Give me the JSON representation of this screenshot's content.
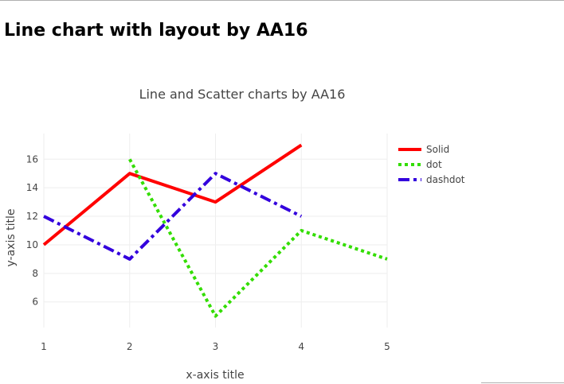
{
  "page": {
    "heading": "Line chart with layout by AA16"
  },
  "chart_data": {
    "type": "line",
    "title": "Line and Scatter charts by AA16",
    "xlabel": "x-axis title",
    "ylabel": "y-axis title",
    "xlim": [
      1,
      5
    ],
    "ylim": [
      4.2,
      17.8
    ],
    "x_ticks": [
      1,
      2,
      3,
      4,
      5
    ],
    "y_ticks": [
      6,
      8,
      10,
      12,
      14,
      16
    ],
    "grid": true,
    "legend_position": "top-right",
    "series": [
      {
        "name": "Solid",
        "x": [
          1,
          2,
          3,
          4
        ],
        "y": [
          10,
          15,
          13,
          17
        ],
        "color": "#ff0000",
        "dash": "solid"
      },
      {
        "name": "dot",
        "x": [
          2,
          3,
          4,
          5
        ],
        "y": [
          16,
          5,
          11,
          9
        ],
        "color": "#33dd00",
        "dash": "dot"
      },
      {
        "name": "dashdot",
        "x": [
          1,
          2,
          3,
          4
        ],
        "y": [
          12,
          9,
          15,
          12
        ],
        "color": "#3300dd",
        "dash": "dashdot"
      }
    ]
  }
}
